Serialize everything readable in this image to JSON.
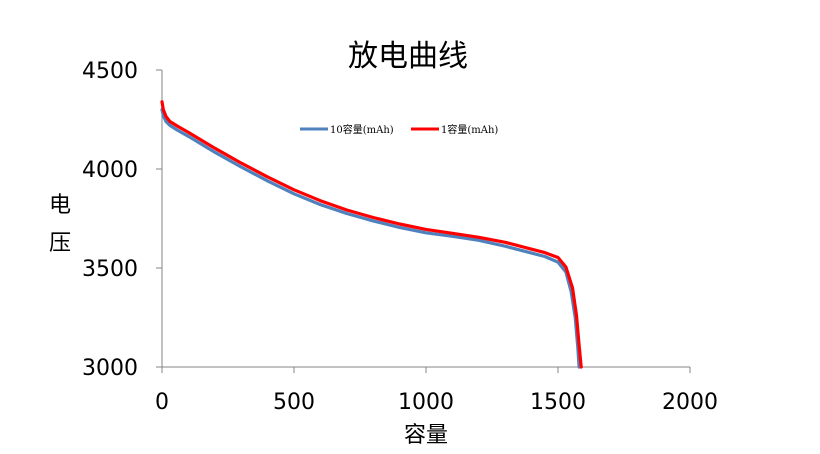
{
  "chart_data": {
    "type": "line",
    "title": "放电曲线",
    "xlabel": "容量",
    "ylabel": "电压",
    "xlim": [
      0,
      2000
    ],
    "ylim": [
      3000,
      4500
    ],
    "xticks": [
      "0",
      "500",
      "1000",
      "1500",
      "2000"
    ],
    "yticks": [
      "3000",
      "3500",
      "4000",
      "4500"
    ],
    "grid": false,
    "legend_position": "top",
    "series": [
      {
        "name": "10容量(mAh)",
        "color": "#4F81BD",
        "x": [
          0,
          5,
          15,
          30,
          60,
          100,
          200,
          300,
          400,
          500,
          600,
          700,
          800,
          900,
          1000,
          1100,
          1200,
          1300,
          1400,
          1450,
          1500,
          1530,
          1550,
          1565,
          1575,
          1580
        ],
        "y": [
          4300,
          4270,
          4240,
          4220,
          4195,
          4165,
          4085,
          4010,
          3940,
          3875,
          3820,
          3775,
          3738,
          3705,
          3678,
          3660,
          3640,
          3610,
          3575,
          3558,
          3530,
          3480,
          3380,
          3250,
          3100,
          3000
        ]
      },
      {
        "name": "1容量(mAh)",
        "color": "#FF0000",
        "x": [
          0,
          5,
          15,
          30,
          60,
          100,
          200,
          300,
          400,
          500,
          600,
          700,
          800,
          900,
          1000,
          1100,
          1200,
          1300,
          1400,
          1450,
          1500,
          1530,
          1555,
          1570,
          1580,
          1588
        ],
        "y": [
          4340,
          4300,
          4265,
          4240,
          4215,
          4185,
          4105,
          4030,
          3960,
          3895,
          3840,
          3793,
          3755,
          3722,
          3695,
          3675,
          3655,
          3630,
          3595,
          3578,
          3553,
          3505,
          3400,
          3260,
          3110,
          3000
        ]
      }
    ]
  }
}
